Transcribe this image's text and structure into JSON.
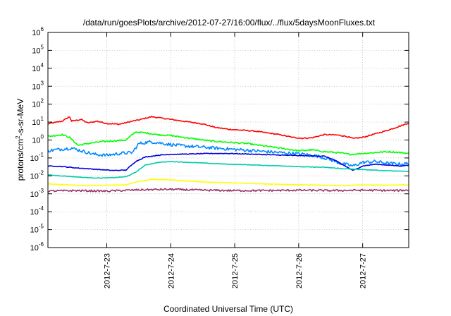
{
  "chart_data": {
    "type": "line",
    "title": "/data/run/goesPlots/archive/2012-07-27/16:00/flux/../flux/5daysMoonFluxes.txt",
    "xlabel": "Coordinated Universal Time (UTC)",
    "ylabel": "protons/cm2-s-sr-MeV",
    "ylabel_parts": {
      "a": "protons/cm",
      "sup": "2",
      "b": "-s-sr-MeV"
    },
    "yscale": "log",
    "ylim_exponents": [
      -6,
      6
    ],
    "y_tick_base": "10",
    "y_tick_exponents": [
      "-6",
      "-5",
      "-4",
      "-3",
      "-2",
      "-1",
      "0",
      "1",
      "2",
      "3",
      "4",
      "5",
      "6"
    ],
    "x_range_days": [
      22.08,
      27.72
    ],
    "x_ticks": [
      {
        "day": 23,
        "label": "2012-7-23"
      },
      {
        "day": 24,
        "label": "2012-7-24"
      },
      {
        "day": 25,
        "label": "2012-7-25"
      },
      {
        "day": 26,
        "label": "2012-7-26"
      },
      {
        "day": 27,
        "label": "2012-7-27"
      }
    ],
    "grid": true,
    "legend": "none",
    "series": [
      {
        "color": "#ff0000",
        "noise": 0.03,
        "points": [
          [
            22.08,
            0.9
          ],
          [
            22.3,
            1.05
          ],
          [
            22.42,
            1.3
          ],
          [
            22.45,
            1.05
          ],
          [
            22.6,
            1.15
          ],
          [
            22.7,
            0.95
          ],
          [
            22.85,
            1.05
          ],
          [
            23.0,
            0.92
          ],
          [
            23.2,
            0.88
          ],
          [
            23.4,
            1.05
          ],
          [
            23.5,
            1.12
          ],
          [
            23.7,
            1.3
          ],
          [
            23.9,
            1.2
          ],
          [
            24.1,
            1.1
          ],
          [
            24.3,
            1.0
          ],
          [
            24.5,
            0.9
          ],
          [
            24.7,
            0.7
          ],
          [
            24.9,
            0.6
          ],
          [
            25.1,
            0.55
          ],
          [
            25.3,
            0.5
          ],
          [
            25.5,
            0.4
          ],
          [
            25.7,
            0.3
          ],
          [
            25.9,
            0.15
          ],
          [
            26.05,
            0.1
          ],
          [
            26.2,
            0.12
          ],
          [
            26.4,
            0.3
          ],
          [
            26.6,
            0.28
          ],
          [
            26.75,
            0.2
          ],
          [
            26.85,
            0.08
          ],
          [
            27.0,
            0.15
          ],
          [
            27.2,
            0.35
          ],
          [
            27.4,
            0.55
          ],
          [
            27.6,
            0.8
          ],
          [
            27.72,
            0.95
          ]
        ]
      },
      {
        "color": "#00ff00",
        "noise": 0.04,
        "points": [
          [
            22.08,
            0.2
          ],
          [
            22.3,
            0.3
          ],
          [
            22.42,
            0.15
          ],
          [
            22.55,
            -0.3
          ],
          [
            22.7,
            -0.2
          ],
          [
            22.9,
            -0.1
          ],
          [
            23.1,
            -0.05
          ],
          [
            23.3,
            0.0
          ],
          [
            23.45,
            0.45
          ],
          [
            23.6,
            0.4
          ],
          [
            23.8,
            0.3
          ],
          [
            24.0,
            0.25
          ],
          [
            24.2,
            0.15
          ],
          [
            24.4,
            0.05
          ],
          [
            24.6,
            -0.05
          ],
          [
            24.8,
            -0.1
          ],
          [
            25.0,
            -0.15
          ],
          [
            25.2,
            -0.2
          ],
          [
            25.4,
            -0.3
          ],
          [
            25.6,
            -0.4
          ],
          [
            25.8,
            -0.5
          ],
          [
            26.0,
            -0.6
          ],
          [
            26.2,
            -0.55
          ],
          [
            26.4,
            -0.65
          ],
          [
            26.6,
            -0.7
          ],
          [
            26.8,
            -0.8
          ],
          [
            27.0,
            -0.75
          ],
          [
            27.2,
            -0.7
          ],
          [
            27.4,
            -0.65
          ],
          [
            27.6,
            -0.7
          ],
          [
            27.72,
            -0.75
          ]
        ]
      },
      {
        "color": "#0088ff",
        "noise": 0.09,
        "points": [
          [
            22.08,
            -0.6
          ],
          [
            22.3,
            -0.5
          ],
          [
            22.45,
            -0.45
          ],
          [
            22.6,
            -0.6
          ],
          [
            22.8,
            -0.8
          ],
          [
            23.0,
            -0.85
          ],
          [
            23.2,
            -0.75
          ],
          [
            23.4,
            -0.7
          ],
          [
            23.5,
            -0.2
          ],
          [
            23.7,
            -0.1
          ],
          [
            23.9,
            -0.2
          ],
          [
            24.1,
            -0.3
          ],
          [
            24.3,
            -0.35
          ],
          [
            24.5,
            -0.4
          ],
          [
            24.7,
            -0.45
          ],
          [
            24.9,
            -0.5
          ],
          [
            25.1,
            -0.55
          ],
          [
            25.3,
            -0.6
          ],
          [
            25.5,
            -0.65
          ],
          [
            25.7,
            -0.7
          ],
          [
            25.9,
            -0.75
          ],
          [
            26.1,
            -0.8
          ],
          [
            26.3,
            -0.9
          ],
          [
            26.5,
            -1.1
          ],
          [
            26.65,
            -1.3
          ],
          [
            26.85,
            -1.45
          ],
          [
            27.0,
            -1.25
          ],
          [
            27.2,
            -1.2
          ],
          [
            27.4,
            -1.3
          ],
          [
            27.6,
            -1.35
          ],
          [
            27.72,
            -1.3
          ]
        ]
      },
      {
        "color": "#0000dd",
        "noise": 0.02,
        "points": [
          [
            22.08,
            -1.45
          ],
          [
            22.3,
            -1.48
          ],
          [
            22.5,
            -1.55
          ],
          [
            22.7,
            -1.6
          ],
          [
            22.9,
            -1.65
          ],
          [
            23.1,
            -1.7
          ],
          [
            23.3,
            -1.68
          ],
          [
            23.45,
            -1.2
          ],
          [
            23.6,
            -0.95
          ],
          [
            23.8,
            -0.85
          ],
          [
            24.0,
            -0.8
          ],
          [
            24.3,
            -0.78
          ],
          [
            24.6,
            -0.75
          ],
          [
            24.9,
            -0.75
          ],
          [
            25.2,
            -0.78
          ],
          [
            25.5,
            -0.82
          ],
          [
            25.8,
            -0.85
          ],
          [
            26.1,
            -0.88
          ],
          [
            26.4,
            -0.9
          ],
          [
            26.55,
            -1.1
          ],
          [
            26.7,
            -1.4
          ],
          [
            26.85,
            -1.7
          ],
          [
            27.0,
            -1.45
          ],
          [
            27.2,
            -1.35
          ],
          [
            27.4,
            -1.4
          ],
          [
            27.6,
            -1.45
          ],
          [
            27.72,
            -1.4
          ]
        ]
      },
      {
        "color": "#00ccaa",
        "noise": 0.015,
        "points": [
          [
            22.08,
            -1.95
          ],
          [
            22.3,
            -2.0
          ],
          [
            22.5,
            -2.05
          ],
          [
            22.7,
            -2.1
          ],
          [
            22.9,
            -2.12
          ],
          [
            23.1,
            -2.1
          ],
          [
            23.3,
            -2.05
          ],
          [
            23.45,
            -1.8
          ],
          [
            23.6,
            -1.4
          ],
          [
            23.8,
            -1.25
          ],
          [
            24.0,
            -1.2
          ],
          [
            24.3,
            -1.25
          ],
          [
            24.6,
            -1.3
          ],
          [
            24.9,
            -1.35
          ],
          [
            25.2,
            -1.38
          ],
          [
            25.5,
            -1.42
          ],
          [
            25.8,
            -1.45
          ],
          [
            26.1,
            -1.5
          ],
          [
            26.4,
            -1.52
          ],
          [
            26.7,
            -1.6
          ],
          [
            27.0,
            -1.65
          ],
          [
            27.3,
            -1.7
          ],
          [
            27.72,
            -1.75
          ]
        ]
      },
      {
        "color": "#ffff00",
        "noise": 0.01,
        "points": [
          [
            22.08,
            -2.45
          ],
          [
            22.4,
            -2.5
          ],
          [
            22.7,
            -2.55
          ],
          [
            23.0,
            -2.52
          ],
          [
            23.3,
            -2.5
          ],
          [
            23.5,
            -2.3
          ],
          [
            23.7,
            -2.2
          ],
          [
            24.0,
            -2.22
          ],
          [
            24.3,
            -2.3
          ],
          [
            24.6,
            -2.35
          ],
          [
            24.9,
            -2.38
          ],
          [
            25.2,
            -2.42
          ],
          [
            25.5,
            -2.45
          ],
          [
            25.8,
            -2.48
          ],
          [
            26.1,
            -2.5
          ],
          [
            26.4,
            -2.52
          ],
          [
            26.7,
            -2.55
          ],
          [
            27.0,
            -2.5
          ],
          [
            27.3,
            -2.52
          ],
          [
            27.72,
            -2.5
          ]
        ]
      },
      {
        "color": "#993366",
        "noise": 0.05,
        "points": [
          [
            22.08,
            -2.85
          ],
          [
            22.5,
            -2.82
          ],
          [
            23.0,
            -2.85
          ],
          [
            23.5,
            -2.78
          ],
          [
            24.0,
            -2.75
          ],
          [
            24.5,
            -2.8
          ],
          [
            25.0,
            -2.82
          ],
          [
            25.5,
            -2.82
          ],
          [
            26.0,
            -2.8
          ],
          [
            26.5,
            -2.82
          ],
          [
            27.0,
            -2.8
          ],
          [
            27.5,
            -2.82
          ],
          [
            27.72,
            -2.8
          ]
        ]
      }
    ]
  }
}
